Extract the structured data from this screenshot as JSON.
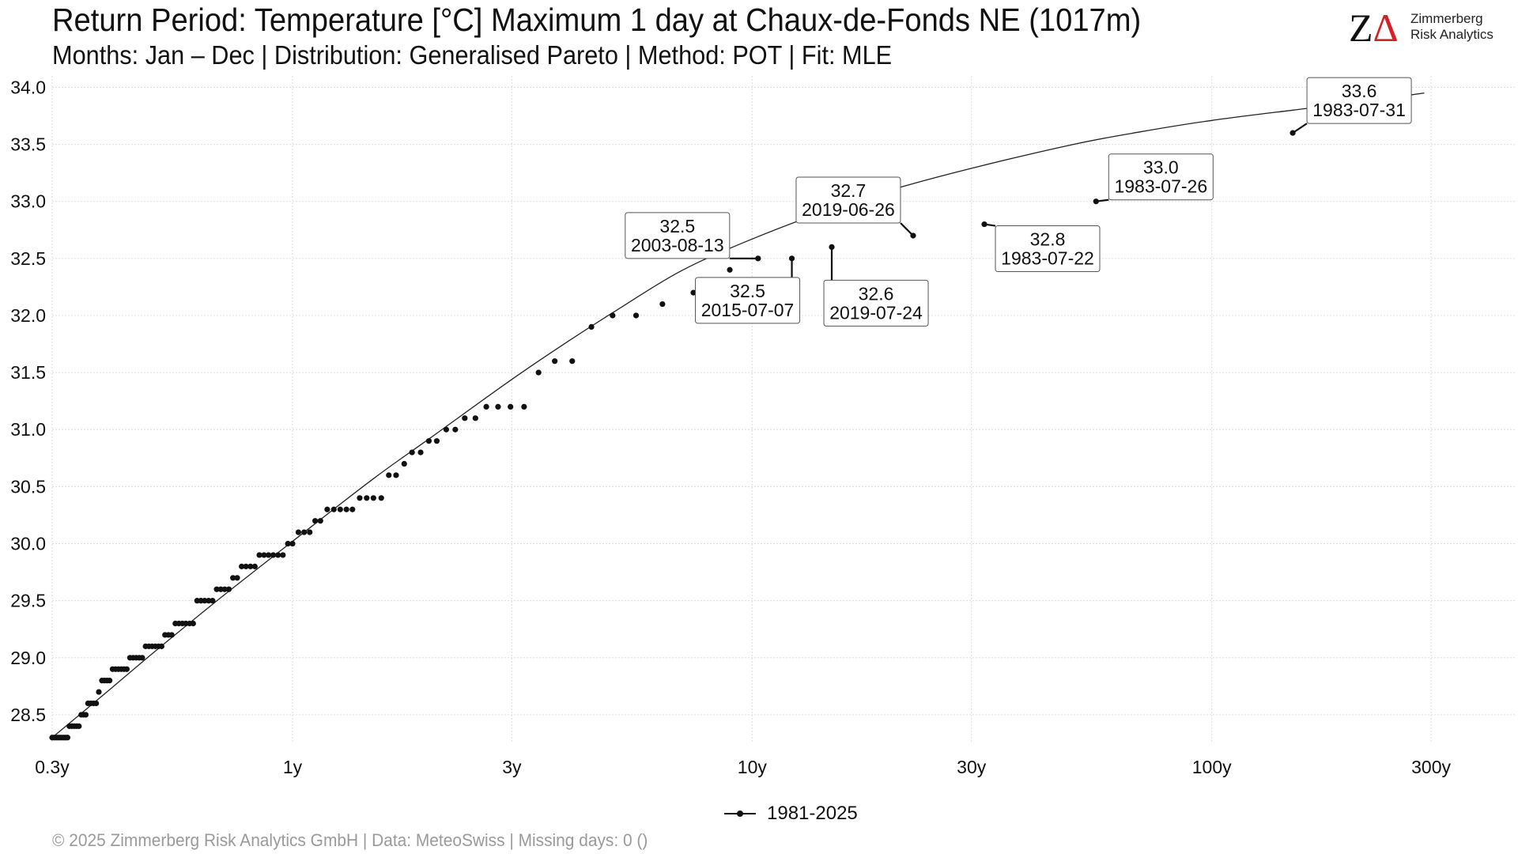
{
  "header": {
    "title": "Return Period: Temperature [°C] Maximum 1 day at Chaux-de-Fonds  NE (1017m)",
    "subtitle": "Months: Jan – Dec | Distribution: Generalised Pareto | Method: POT | Fit: MLE"
  },
  "logo": {
    "mark_z": "Z",
    "mark_delta": "Δ",
    "line1": "Zimmerberg",
    "line2": "Risk Analytics",
    "accent_color": "#d61f26"
  },
  "footer": {
    "text": "©  2025 Zimmerberg Risk Analytics GmbH | Data: MeteoSwiss | Missing days: 0 ()"
  },
  "legend": {
    "label": "1981-2025"
  },
  "chart_data": {
    "type": "scatter",
    "title": "Return Period: Temperature [°C] Maximum 1 day at Chaux-de-Fonds  NE (1017m)",
    "x_scale": "log",
    "xlim": [
      0.3,
      460
    ],
    "ylim": [
      28.25,
      34.1
    ],
    "grid": true,
    "legend_position": "bottom",
    "x_ticks": [
      {
        "value": 0.3,
        "label": "0.3y"
      },
      {
        "value": 1,
        "label": "1y"
      },
      {
        "value": 3,
        "label": "3y"
      },
      {
        "value": 10,
        "label": "10y"
      },
      {
        "value": 30,
        "label": "30y"
      },
      {
        "value": 100,
        "label": "100y"
      },
      {
        "value": 300,
        "label": "300y"
      }
    ],
    "y_ticks": [
      {
        "value": 28.5,
        "label": "28.5"
      },
      {
        "value": 29.0,
        "label": "29.0"
      },
      {
        "value": 29.5,
        "label": "29.5"
      },
      {
        "value": 30.0,
        "label": "30.0"
      },
      {
        "value": 30.5,
        "label": "30.5"
      },
      {
        "value": 31.0,
        "label": "31.0"
      },
      {
        "value": 31.5,
        "label": "31.5"
      },
      {
        "value": 32.0,
        "label": "32.0"
      },
      {
        "value": 32.5,
        "label": "32.5"
      },
      {
        "value": 33.0,
        "label": "33.0"
      },
      {
        "value": 33.5,
        "label": "33.5"
      },
      {
        "value": 34.0,
        "label": "34.0"
      }
    ],
    "fit_curve": {
      "x": [
        0.3,
        0.4,
        0.5,
        0.7,
        1,
        1.5,
        2,
        3,
        4,
        5,
        7,
        10,
        15,
        20,
        30,
        50,
        70,
        100,
        150,
        200,
        290
      ],
      "y": [
        28.3,
        28.72,
        29.05,
        29.53,
        30.02,
        30.57,
        30.93,
        31.44,
        31.78,
        32.03,
        32.39,
        32.67,
        32.94,
        33.1,
        33.29,
        33.5,
        33.61,
        33.71,
        33.8,
        33.86,
        33.95
      ]
    },
    "series": [
      {
        "name": "1981-2025",
        "points": [
          {
            "x": 0.3,
            "y": 28.3
          },
          {
            "x": 0.303,
            "y": 28.3
          },
          {
            "x": 0.306,
            "y": 28.3
          },
          {
            "x": 0.309,
            "y": 28.3
          },
          {
            "x": 0.312,
            "y": 28.3
          },
          {
            "x": 0.315,
            "y": 28.3
          },
          {
            "x": 0.318,
            "y": 28.3
          },
          {
            "x": 0.321,
            "y": 28.3
          },
          {
            "x": 0.324,
            "y": 28.3
          },
          {
            "x": 0.327,
            "y": 28.4
          },
          {
            "x": 0.331,
            "y": 28.4
          },
          {
            "x": 0.335,
            "y": 28.4
          },
          {
            "x": 0.339,
            "y": 28.4
          },
          {
            "x": 0.343,
            "y": 28.4
          },
          {
            "x": 0.347,
            "y": 28.5
          },
          {
            "x": 0.351,
            "y": 28.5
          },
          {
            "x": 0.355,
            "y": 28.5
          },
          {
            "x": 0.359,
            "y": 28.6
          },
          {
            "x": 0.364,
            "y": 28.6
          },
          {
            "x": 0.369,
            "y": 28.6
          },
          {
            "x": 0.374,
            "y": 28.6
          },
          {
            "x": 0.379,
            "y": 28.7
          },
          {
            "x": 0.385,
            "y": 28.8
          },
          {
            "x": 0.39,
            "y": 28.8
          },
          {
            "x": 0.395,
            "y": 28.8
          },
          {
            "x": 0.4,
            "y": 28.8
          },
          {
            "x": 0.406,
            "y": 28.9
          },
          {
            "x": 0.412,
            "y": 28.9
          },
          {
            "x": 0.418,
            "y": 28.9
          },
          {
            "x": 0.424,
            "y": 28.9
          },
          {
            "x": 0.43,
            "y": 28.9
          },
          {
            "x": 0.436,
            "y": 28.9
          },
          {
            "x": 0.443,
            "y": 29.0
          },
          {
            "x": 0.45,
            "y": 29.0
          },
          {
            "x": 0.457,
            "y": 29.0
          },
          {
            "x": 0.464,
            "y": 29.0
          },
          {
            "x": 0.471,
            "y": 29.0
          },
          {
            "x": 0.479,
            "y": 29.1
          },
          {
            "x": 0.487,
            "y": 29.1
          },
          {
            "x": 0.495,
            "y": 29.1
          },
          {
            "x": 0.503,
            "y": 29.1
          },
          {
            "x": 0.511,
            "y": 29.1
          },
          {
            "x": 0.519,
            "y": 29.1
          },
          {
            "x": 0.528,
            "y": 29.2
          },
          {
            "x": 0.537,
            "y": 29.2
          },
          {
            "x": 0.546,
            "y": 29.2
          },
          {
            "x": 0.556,
            "y": 29.3
          },
          {
            "x": 0.566,
            "y": 29.3
          },
          {
            "x": 0.576,
            "y": 29.3
          },
          {
            "x": 0.586,
            "y": 29.3
          },
          {
            "x": 0.597,
            "y": 29.3
          },
          {
            "x": 0.608,
            "y": 29.3
          },
          {
            "x": 0.62,
            "y": 29.5
          },
          {
            "x": 0.632,
            "y": 29.5
          },
          {
            "x": 0.644,
            "y": 29.5
          },
          {
            "x": 0.657,
            "y": 29.5
          },
          {
            "x": 0.67,
            "y": 29.5
          },
          {
            "x": 0.684,
            "y": 29.6
          },
          {
            "x": 0.698,
            "y": 29.6
          },
          {
            "x": 0.712,
            "y": 29.6
          },
          {
            "x": 0.727,
            "y": 29.6
          },
          {
            "x": 0.742,
            "y": 29.7
          },
          {
            "x": 0.758,
            "y": 29.7
          },
          {
            "x": 0.775,
            "y": 29.8
          },
          {
            "x": 0.792,
            "y": 29.8
          },
          {
            "x": 0.81,
            "y": 29.8
          },
          {
            "x": 0.828,
            "y": 29.8
          },
          {
            "x": 0.847,
            "y": 29.9
          },
          {
            "x": 0.867,
            "y": 29.9
          },
          {
            "x": 0.887,
            "y": 29.9
          },
          {
            "x": 0.908,
            "y": 29.9
          },
          {
            "x": 0.93,
            "y": 29.9
          },
          {
            "x": 0.953,
            "y": 29.9
          },
          {
            "x": 0.977,
            "y": 30.0
          },
          {
            "x": 1.0,
            "y": 30.0
          },
          {
            "x": 1.03,
            "y": 30.1
          },
          {
            "x": 1.06,
            "y": 30.1
          },
          {
            "x": 1.09,
            "y": 30.1
          },
          {
            "x": 1.12,
            "y": 30.2
          },
          {
            "x": 1.15,
            "y": 30.2
          },
          {
            "x": 1.19,
            "y": 30.3
          },
          {
            "x": 1.23,
            "y": 30.3
          },
          {
            "x": 1.27,
            "y": 30.3
          },
          {
            "x": 1.31,
            "y": 30.3
          },
          {
            "x": 1.35,
            "y": 30.3
          },
          {
            "x": 1.4,
            "y": 30.4
          },
          {
            "x": 1.45,
            "y": 30.4
          },
          {
            "x": 1.5,
            "y": 30.4
          },
          {
            "x": 1.56,
            "y": 30.4
          },
          {
            "x": 1.62,
            "y": 30.6
          },
          {
            "x": 1.68,
            "y": 30.6
          },
          {
            "x": 1.75,
            "y": 30.7
          },
          {
            "x": 1.82,
            "y": 30.8
          },
          {
            "x": 1.9,
            "y": 30.8
          },
          {
            "x": 1.98,
            "y": 30.9
          },
          {
            "x": 2.06,
            "y": 30.9
          },
          {
            "x": 2.16,
            "y": 31.0
          },
          {
            "x": 2.26,
            "y": 31.0
          },
          {
            "x": 2.37,
            "y": 31.1
          },
          {
            "x": 2.5,
            "y": 31.1
          },
          {
            "x": 2.64,
            "y": 31.2
          },
          {
            "x": 2.8,
            "y": 31.2
          },
          {
            "x": 2.98,
            "y": 31.2
          },
          {
            "x": 3.19,
            "y": 31.2
          },
          {
            "x": 3.43,
            "y": 31.5
          },
          {
            "x": 3.72,
            "y": 31.6
          },
          {
            "x": 4.06,
            "y": 31.6
          },
          {
            "x": 4.47,
            "y": 31.9
          },
          {
            "x": 4.97,
            "y": 32.0
          },
          {
            "x": 5.59,
            "y": 32.0
          },
          {
            "x": 6.38,
            "y": 32.1
          },
          {
            "x": 7.45,
            "y": 32.2
          },
          {
            "x": 8.94,
            "y": 32.4
          },
          {
            "x": 10.3,
            "y": 32.5
          },
          {
            "x": 12.2,
            "y": 32.5
          },
          {
            "x": 14.9,
            "y": 32.6
          },
          {
            "x": 22.4,
            "y": 32.7
          },
          {
            "x": 32.0,
            "y": 32.8
          },
          {
            "x": 56.0,
            "y": 33.0
          },
          {
            "x": 150.0,
            "y": 33.6
          }
        ]
      }
    ],
    "annotations": [
      {
        "value": "32.5",
        "date": "2003-08-13",
        "x": 10.3,
        "y": 32.5
      },
      {
        "value": "32.7",
        "date": "2019-06-26",
        "x": 22.4,
        "y": 32.7
      },
      {
        "value": "32.5",
        "date": "2015-07-07",
        "x": 12.2,
        "y": 32.5
      },
      {
        "value": "32.6",
        "date": "2019-07-24",
        "x": 14.9,
        "y": 32.6
      },
      {
        "value": "32.8",
        "date": "1983-07-22",
        "x": 32.0,
        "y": 32.8
      },
      {
        "value": "33.0",
        "date": "1983-07-26",
        "x": 56.0,
        "y": 33.0
      },
      {
        "value": "33.6",
        "date": "1983-07-31",
        "x": 150.0,
        "y": 33.6
      }
    ]
  }
}
